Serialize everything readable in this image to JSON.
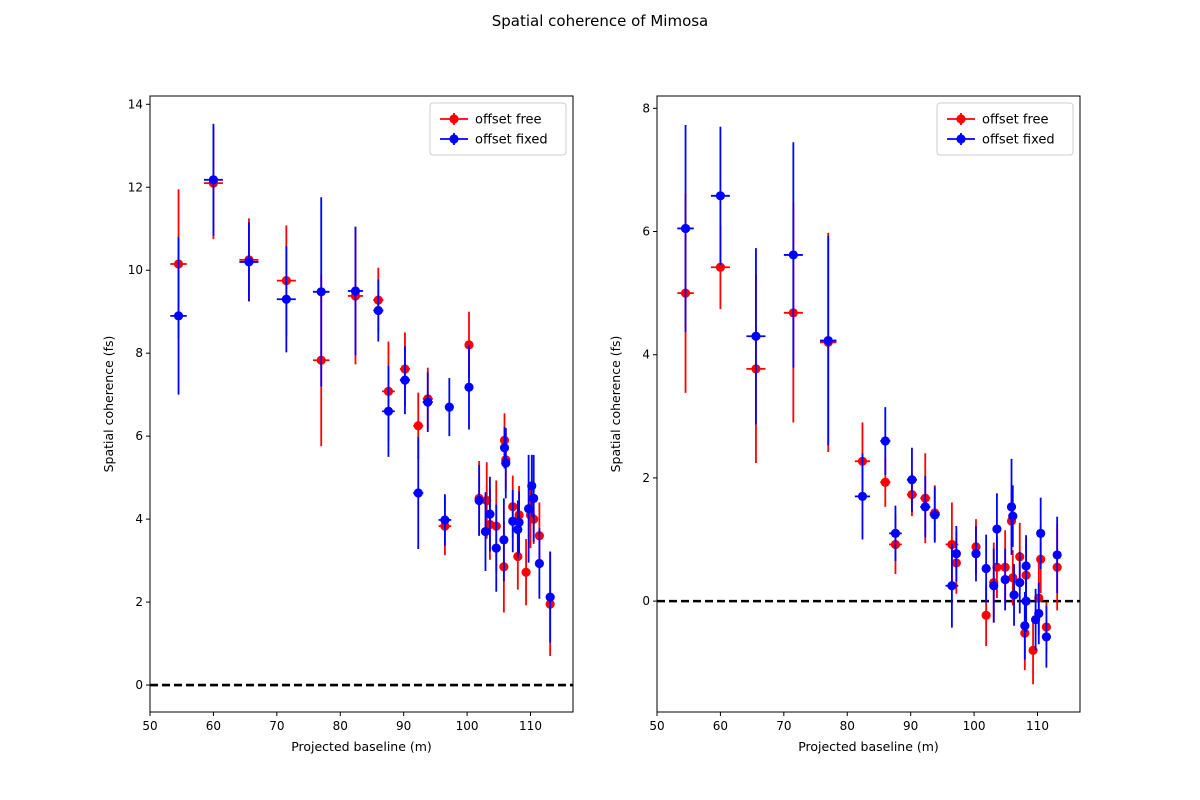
{
  "figure": {
    "title": "Spatial coherence of Mimosa"
  },
  "colors": {
    "offset_free": "#ff0000",
    "offset_fixed": "#0000ff",
    "reference_line": "#000000"
  },
  "chart_data": [
    {
      "type": "scatter",
      "panel": "left",
      "title": "",
      "xlabel": "Projected baseline (m)",
      "ylabel": "Spatial coherence (fs)",
      "xlim": [
        50,
        116.7
      ],
      "ylim": [
        -0.65,
        14.2
      ],
      "xticks": [
        50,
        60,
        70,
        80,
        90,
        100,
        110
      ],
      "yticks": [
        0,
        2,
        4,
        6,
        8,
        10,
        12,
        14
      ],
      "grid": false,
      "legend": "top-right",
      "reference_line": {
        "y": 0,
        "style": "dashed"
      },
      "series": [
        {
          "name": "offset free",
          "color": "#ff0000",
          "points": [
            {
              "x": 54.5,
              "y": 10.15,
              "yerr": 1.8,
              "xerr": 1.3
            },
            {
              "x": 60.0,
              "y": 12.1,
              "yerr": 1.35,
              "xerr": 1.5
            },
            {
              "x": 65.6,
              "y": 10.25,
              "yerr": 1.0,
              "xerr": 1.5
            },
            {
              "x": 71.5,
              "y": 9.75,
              "yerr": 1.33,
              "xerr": 1.5
            },
            {
              "x": 77.0,
              "y": 7.83,
              "yerr": 2.07,
              "xerr": 1.3
            },
            {
              "x": 82.4,
              "y": 9.38,
              "yerr": 1.65,
              "xerr": 1.2
            },
            {
              "x": 86.0,
              "y": 9.28,
              "yerr": 0.78,
              "xerr": 0.8
            },
            {
              "x": 87.6,
              "y": 7.08,
              "yerr": 1.2,
              "xerr": 1.0
            },
            {
              "x": 90.2,
              "y": 7.62,
              "yerr": 0.88,
              "xerr": 0.8
            },
            {
              "x": 92.3,
              "y": 6.25,
              "yerr": 0.8,
              "xerr": 0.8
            },
            {
              "x": 93.8,
              "y": 6.9,
              "yerr": 0.75,
              "xerr": 0.8
            },
            {
              "x": 96.5,
              "y": 3.83,
              "yerr": 0.7,
              "xerr": 1.0
            },
            {
              "x": 100.3,
              "y": 8.2,
              "yerr": 0.8,
              "xerr": 0.5
            },
            {
              "x": 101.9,
              "y": 4.5,
              "yerr": 0.9,
              "xerr": 0.5
            },
            {
              "x": 103.1,
              "y": 4.45,
              "yerr": 0.92,
              "xerr": 0.5
            },
            {
              "x": 103.6,
              "y": 3.87,
              "yerr": 0.85,
              "xerr": 0.5
            },
            {
              "x": 104.6,
              "y": 3.83,
              "yerr": 1.1,
              "xerr": 0.5
            },
            {
              "x": 105.9,
              "y": 5.9,
              "yerr": 0.65,
              "xerr": 0.3
            },
            {
              "x": 106.1,
              "y": 5.43,
              "yerr": 0.75,
              "xerr": 0.3
            },
            {
              "x": 105.8,
              "y": 2.85,
              "yerr": 1.1,
              "xerr": 0.3
            },
            {
              "x": 107.2,
              "y": 4.3,
              "yerr": 0.75,
              "xerr": 0.4
            },
            {
              "x": 108.0,
              "y": 3.1,
              "yerr": 0.8,
              "xerr": 0.4
            },
            {
              "x": 108.2,
              "y": 4.1,
              "yerr": 0.7,
              "xerr": 0.4
            },
            {
              "x": 109.3,
              "y": 2.72,
              "yerr": 0.8,
              "xerr": 0.4
            },
            {
              "x": 110.0,
              "y": 4.1,
              "yerr": 0.8,
              "xerr": 0.4
            },
            {
              "x": 110.5,
              "y": 4.0,
              "yerr": 0.6,
              "xerr": 0.4
            },
            {
              "x": 111.4,
              "y": 3.6,
              "yerr": 0.8,
              "xerr": 0.4
            },
            {
              "x": 113.1,
              "y": 1.95,
              "yerr": 1.25,
              "xerr": 0.4
            }
          ]
        },
        {
          "name": "offset fixed",
          "color": "#0000ff",
          "points": [
            {
              "x": 54.5,
              "y": 8.9,
              "yerr": 1.9,
              "xerr": 1.3
            },
            {
              "x": 60.0,
              "y": 12.18,
              "yerr": 1.35,
              "xerr": 1.5
            },
            {
              "x": 65.6,
              "y": 10.2,
              "yerr": 0.95,
              "xerr": 1.5
            },
            {
              "x": 71.5,
              "y": 9.3,
              "yerr": 1.28,
              "xerr": 1.5
            },
            {
              "x": 77.0,
              "y": 9.48,
              "yerr": 2.28,
              "xerr": 1.3
            },
            {
              "x": 82.4,
              "y": 9.5,
              "yerr": 1.55,
              "xerr": 1.2
            },
            {
              "x": 86.0,
              "y": 9.03,
              "yerr": 0.75,
              "xerr": 0.8
            },
            {
              "x": 87.6,
              "y": 6.6,
              "yerr": 1.1,
              "xerr": 1.0
            },
            {
              "x": 90.2,
              "y": 7.35,
              "yerr": 0.82,
              "xerr": 0.8
            },
            {
              "x": 92.3,
              "y": 4.63,
              "yerr": 1.35,
              "xerr": 0.8
            },
            {
              "x": 93.8,
              "y": 6.82,
              "yerr": 0.72,
              "xerr": 0.8
            },
            {
              "x": 96.5,
              "y": 3.98,
              "yerr": 0.62,
              "xerr": 1.0
            },
            {
              "x": 97.2,
              "y": 6.7,
              "yerr": 0.7,
              "xerr": 0.3
            },
            {
              "x": 100.3,
              "y": 7.18,
              "yerr": 1.02,
              "xerr": 0.5
            },
            {
              "x": 101.9,
              "y": 4.45,
              "yerr": 0.85,
              "xerr": 0.5
            },
            {
              "x": 102.9,
              "y": 3.7,
              "yerr": 0.95,
              "xerr": 0.5
            },
            {
              "x": 103.6,
              "y": 4.12,
              "yerr": 0.9,
              "xerr": 0.5
            },
            {
              "x": 104.6,
              "y": 3.3,
              "yerr": 1.05,
              "xerr": 0.5
            },
            {
              "x": 105.9,
              "y": 5.72,
              "yerr": 0.5,
              "xerr": 0.3
            },
            {
              "x": 106.1,
              "y": 5.35,
              "yerr": 0.85,
              "xerr": 0.3
            },
            {
              "x": 105.8,
              "y": 3.5,
              "yerr": 1.0,
              "xerr": 0.3
            },
            {
              "x": 107.2,
              "y": 3.95,
              "yerr": 0.75,
              "xerr": 0.4
            },
            {
              "x": 108.0,
              "y": 3.75,
              "yerr": 0.7,
              "xerr": 0.4
            },
            {
              "x": 108.2,
              "y": 3.92,
              "yerr": 0.75,
              "xerr": 0.4
            },
            {
              "x": 109.7,
              "y": 4.25,
              "yerr": 1.3,
              "xerr": 0.4
            },
            {
              "x": 110.2,
              "y": 4.8,
              "yerr": 0.75,
              "xerr": 0.4
            },
            {
              "x": 110.5,
              "y": 4.5,
              "yerr": 1.05,
              "xerr": 0.4
            },
            {
              "x": 111.4,
              "y": 2.93,
              "yerr": 0.85,
              "xerr": 0.4
            },
            {
              "x": 113.1,
              "y": 2.12,
              "yerr": 1.1,
              "xerr": 0.4
            }
          ]
        }
      ]
    },
    {
      "type": "scatter",
      "panel": "right",
      "title": "",
      "xlabel": "Projected baseline (m)",
      "ylabel": "Spatial coherence (fs)",
      "xlim": [
        50,
        116.7
      ],
      "ylim": [
        -1.8,
        8.2
      ],
      "xticks": [
        50,
        60,
        70,
        80,
        90,
        100,
        110
      ],
      "yticks": [
        0,
        2,
        4,
        6,
        8
      ],
      "grid": false,
      "legend": "top-right",
      "reference_line": {
        "y": 0,
        "style": "dashed"
      },
      "series": [
        {
          "name": "offset free",
          "color": "#ff0000",
          "points": [
            {
              "x": 54.5,
              "y": 5.0,
              "yerr": 1.62,
              "xerr": 1.3
            },
            {
              "x": 60.0,
              "y": 5.42,
              "yerr": 0.68,
              "xerr": 1.5
            },
            {
              "x": 65.6,
              "y": 3.77,
              "yerr": 1.53,
              "xerr": 1.5
            },
            {
              "x": 71.5,
              "y": 4.68,
              "yerr": 1.78,
              "xerr": 1.5
            },
            {
              "x": 77.0,
              "y": 4.2,
              "yerr": 1.78,
              "xerr": 1.3
            },
            {
              "x": 82.4,
              "y": 2.27,
              "yerr": 0.63,
              "xerr": 1.2
            },
            {
              "x": 86.0,
              "y": 1.93,
              "yerr": 0.4,
              "xerr": 0.8
            },
            {
              "x": 87.6,
              "y": 0.92,
              "yerr": 0.48,
              "xerr": 1.0
            },
            {
              "x": 90.2,
              "y": 1.73,
              "yerr": 0.35,
              "xerr": 0.8
            },
            {
              "x": 92.3,
              "y": 1.67,
              "yerr": 0.73,
              "xerr": 0.8
            },
            {
              "x": 93.8,
              "y": 1.43,
              "yerr": 0.45,
              "xerr": 0.8
            },
            {
              "x": 96.5,
              "y": 0.92,
              "yerr": 0.68,
              "xerr": 1.0
            },
            {
              "x": 97.2,
              "y": 0.62,
              "yerr": 0.5,
              "xerr": 0.3
            },
            {
              "x": 100.3,
              "y": 0.88,
              "yerr": 0.45,
              "xerr": 0.5
            },
            {
              "x": 101.9,
              "y": -0.23,
              "yerr": 0.5,
              "xerr": 0.5
            },
            {
              "x": 103.1,
              "y": 0.3,
              "yerr": 0.65,
              "xerr": 0.5
            },
            {
              "x": 103.6,
              "y": 0.55,
              "yerr": 0.5,
              "xerr": 0.5
            },
            {
              "x": 104.9,
              "y": 0.55,
              "yerr": 0.6,
              "xerr": 0.5
            },
            {
              "x": 105.9,
              "y": 1.3,
              "yerr": 0.45,
              "xerr": 0.3
            },
            {
              "x": 106.1,
              "y": 0.38,
              "yerr": 0.45,
              "xerr": 0.3
            },
            {
              "x": 107.2,
              "y": 0.72,
              "yerr": 0.55,
              "xerr": 0.4
            },
            {
              "x": 108.0,
              "y": -0.52,
              "yerr": 0.6,
              "xerr": 0.4
            },
            {
              "x": 108.2,
              "y": 0.42,
              "yerr": 0.6,
              "xerr": 0.4
            },
            {
              "x": 109.3,
              "y": -0.8,
              "yerr": 0.55,
              "xerr": 0.4
            },
            {
              "x": 110.2,
              "y": 0.05,
              "yerr": 0.6,
              "xerr": 0.4
            },
            {
              "x": 110.5,
              "y": 0.68,
              "yerr": 0.55,
              "xerr": 0.4
            },
            {
              "x": 111.4,
              "y": -0.42,
              "yerr": 0.4,
              "xerr": 0.4
            },
            {
              "x": 113.1,
              "y": 0.55,
              "yerr": 0.7,
              "xerr": 0.4
            }
          ]
        },
        {
          "name": "offset fixed",
          "color": "#0000ff",
          "points": [
            {
              "x": 54.5,
              "y": 6.05,
              "yerr": 1.68,
              "xerr": 1.3
            },
            {
              "x": 60.0,
              "y": 6.58,
              "yerr": 1.12,
              "xerr": 1.5
            },
            {
              "x": 65.6,
              "y": 4.3,
              "yerr": 1.43,
              "xerr": 1.5
            },
            {
              "x": 71.5,
              "y": 5.62,
              "yerr": 1.83,
              "xerr": 1.5
            },
            {
              "x": 77.0,
              "y": 4.23,
              "yerr": 1.7,
              "xerr": 1.3
            },
            {
              "x": 82.4,
              "y": 1.7,
              "yerr": 0.7,
              "xerr": 1.2
            },
            {
              "x": 86.0,
              "y": 2.6,
              "yerr": 0.55,
              "xerr": 0.8
            },
            {
              "x": 87.6,
              "y": 1.1,
              "yerr": 0.45,
              "xerr": 1.0
            },
            {
              "x": 90.2,
              "y": 1.97,
              "yerr": 0.52,
              "xerr": 0.8
            },
            {
              "x": 92.3,
              "y": 1.53,
              "yerr": 0.5,
              "xerr": 0.8
            },
            {
              "x": 93.8,
              "y": 1.4,
              "yerr": 0.45,
              "xerr": 0.8
            },
            {
              "x": 96.5,
              "y": 0.25,
              "yerr": 0.68,
              "xerr": 1.0
            },
            {
              "x": 97.2,
              "y": 0.77,
              "yerr": 0.45,
              "xerr": 0.3
            },
            {
              "x": 100.3,
              "y": 0.77,
              "yerr": 0.45,
              "xerr": 0.5
            },
            {
              "x": 101.9,
              "y": 0.53,
              "yerr": 0.55,
              "xerr": 0.5
            },
            {
              "x": 103.1,
              "y": 0.25,
              "yerr": 0.6,
              "xerr": 0.5
            },
            {
              "x": 103.6,
              "y": 1.17,
              "yerr": 0.58,
              "xerr": 0.5
            },
            {
              "x": 104.9,
              "y": 0.35,
              "yerr": 0.5,
              "xerr": 0.5
            },
            {
              "x": 105.9,
              "y": 1.53,
              "yerr": 0.78,
              "xerr": 0.3
            },
            {
              "x": 106.1,
              "y": 1.38,
              "yerr": 0.5,
              "xerr": 0.3
            },
            {
              "x": 106.3,
              "y": 0.1,
              "yerr": 0.5,
              "xerr": 0.3
            },
            {
              "x": 107.2,
              "y": 0.3,
              "yerr": 0.5,
              "xerr": 0.4
            },
            {
              "x": 108.0,
              "y": -0.4,
              "yerr": 0.55,
              "xerr": 0.4
            },
            {
              "x": 108.2,
              "y": 0.57,
              "yerr": 0.5,
              "xerr": 0.4
            },
            {
              "x": 108.2,
              "y": 0.0,
              "yerr": 0.5,
              "xerr": 0.4
            },
            {
              "x": 109.7,
              "y": -0.3,
              "yerr": 0.5,
              "xerr": 0.4
            },
            {
              "x": 110.2,
              "y": -0.2,
              "yerr": 0.5,
              "xerr": 0.4
            },
            {
              "x": 110.5,
              "y": 1.1,
              "yerr": 0.58,
              "xerr": 0.4
            },
            {
              "x": 111.4,
              "y": -0.58,
              "yerr": 0.5,
              "xerr": 0.4
            },
            {
              "x": 113.1,
              "y": 0.75,
              "yerr": 0.62,
              "xerr": 0.4
            }
          ]
        }
      ]
    }
  ]
}
